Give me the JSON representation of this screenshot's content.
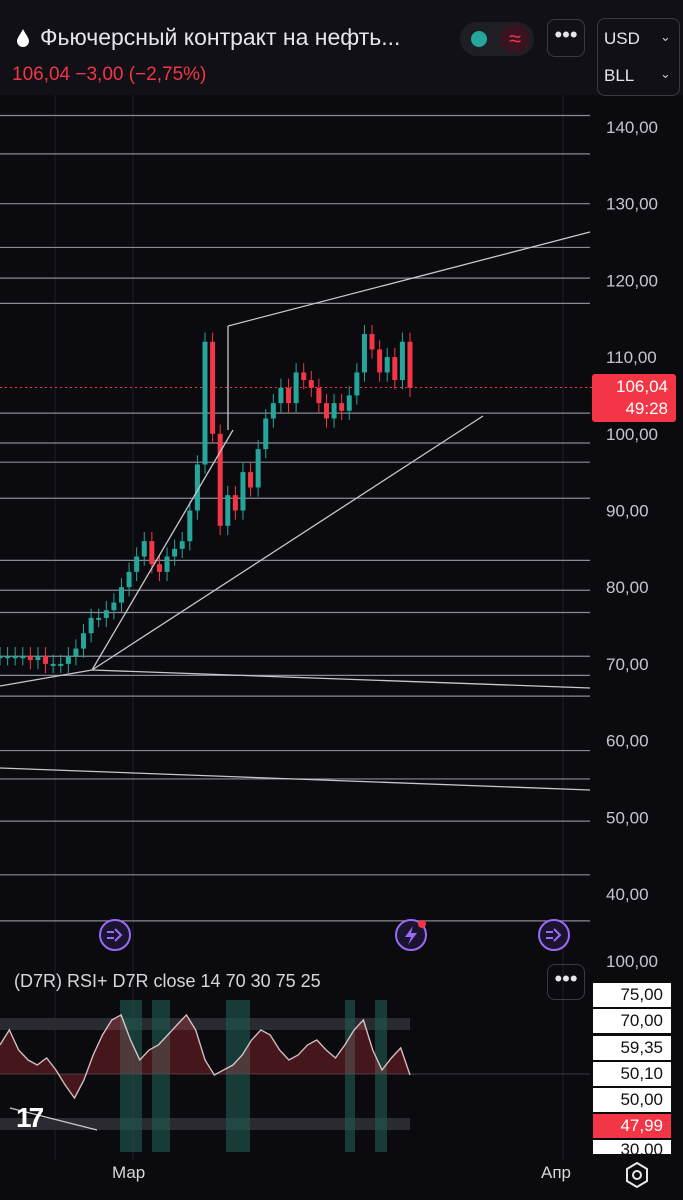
{
  "header": {
    "title": "Фьючерсный контракт на нефть...",
    "price_line": "106,04  −3,00 (−2,75%)",
    "currency": "USD",
    "unit": "BLL",
    "menu_label": "•••"
  },
  "price_axis": {
    "labels": [
      "140,00",
      "130,00",
      "120,00",
      "110,00",
      "100,00",
      "90,00",
      "80,00",
      "70,00",
      "60,00",
      "50,00",
      "40,00"
    ],
    "current_price": "106,04",
    "countdown": "49:28"
  },
  "indicator": {
    "title": "(D7R) RSI+ D7R close 14 70 30 75 25",
    "menu_label": "•••",
    "top_label": "100,00",
    "tags": [
      "75,00",
      "70,00",
      "59,35",
      "50,10",
      "50,00",
      "47,99",
      "30,00"
    ]
  },
  "time_axis": {
    "labels": [
      "Мар",
      "Апр"
    ]
  },
  "colors": {
    "up": "#26a69a",
    "down": "#f23645",
    "background": "#0b0b0f",
    "accent": "#9c6bf5"
  },
  "chart_data": {
    "type": "line",
    "title": "Фьючерсный контракт на нефть...",
    "xlabel": "",
    "ylabel": "",
    "x_ticks": [
      "Мар",
      "Апр"
    ],
    "ylim": [
      35,
      145
    ],
    "series": [
      {
        "values": [
          71,
          71,
          71,
          71,
          70.5,
          71,
          70,
          70,
          70,
          71,
          72,
          74,
          76,
          76,
          77,
          78,
          80,
          82,
          84,
          86,
          83,
          82,
          84,
          85,
          86,
          90,
          96,
          112,
          100,
          88,
          92,
          90,
          95,
          93,
          98,
          102,
          104,
          106,
          104,
          108,
          107,
          106,
          104,
          102,
          104,
          103,
          105,
          108,
          113,
          111,
          108,
          110,
          107,
          112,
          106
        ]
      }
    ]
  }
}
